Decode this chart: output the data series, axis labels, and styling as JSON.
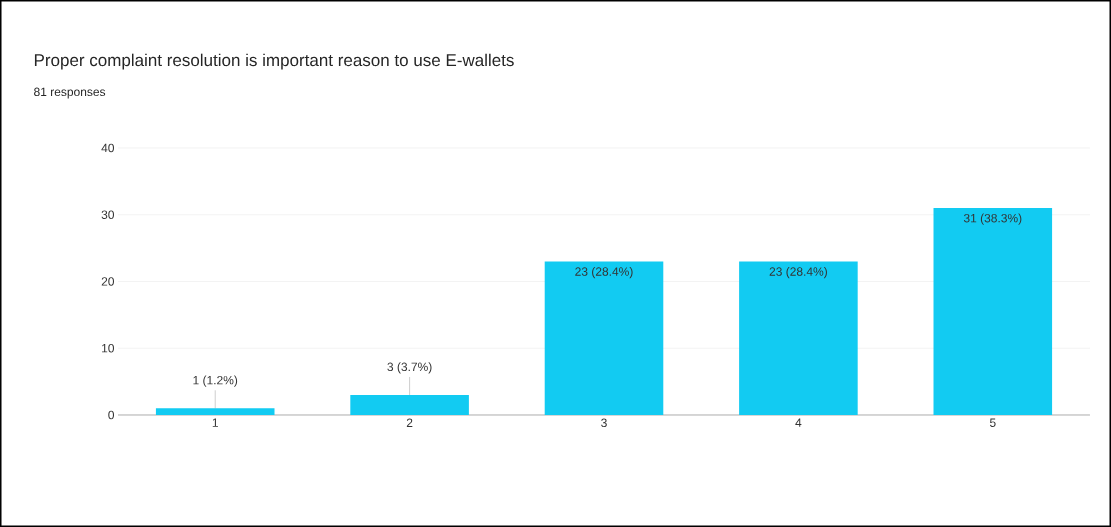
{
  "chart_data": {
    "type": "bar",
    "title": "Proper complaint resolution is important reason to use E-wallets",
    "subtitle": "81 responses",
    "categories": [
      "1",
      "2",
      "3",
      "4",
      "5"
    ],
    "values": [
      1,
      3,
      23,
      23,
      31
    ],
    "value_labels": [
      "1 (1.2%)",
      "3 (3.7%)",
      "23 (28.4%)",
      "23 (28.4%)",
      "31 (38.3%)"
    ],
    "color": "#12cbf2",
    "ylim": [
      0,
      40
    ],
    "yticks": [
      0,
      10,
      20,
      30,
      40
    ],
    "grid": "y"
  }
}
